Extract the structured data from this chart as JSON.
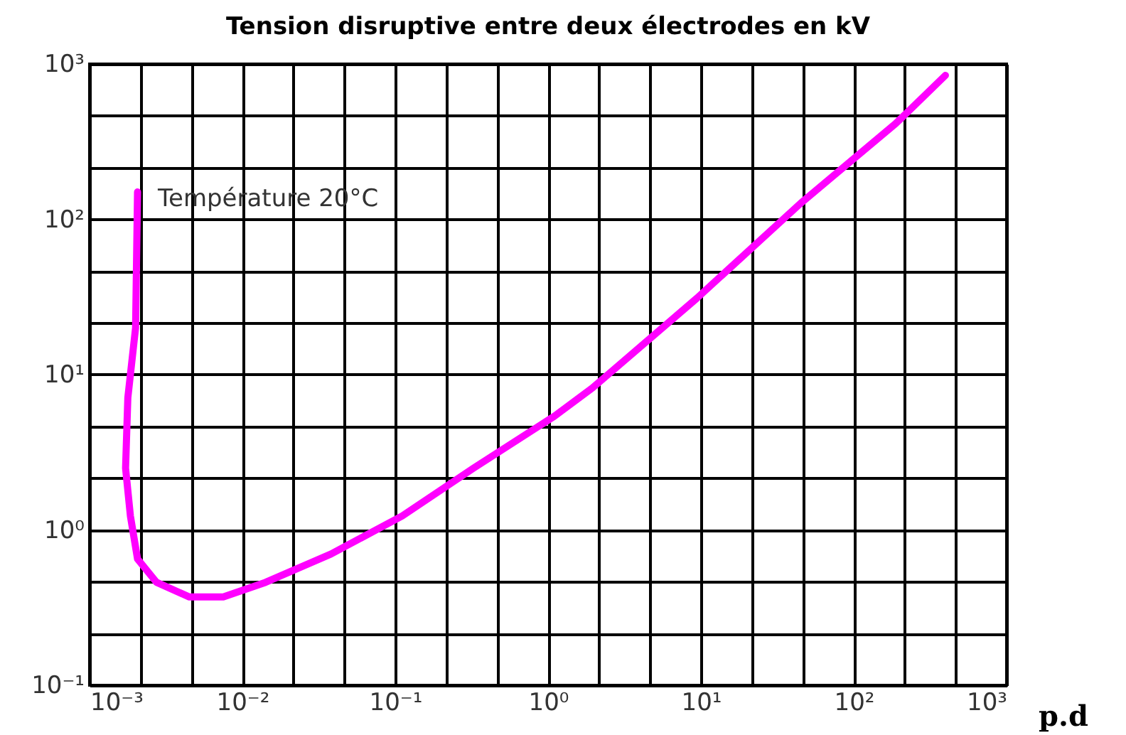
{
  "chart_data": {
    "type": "line",
    "title": "Tension disruptive entre deux électrodes en kV",
    "xlabel": "p.d",
    "log": "xy",
    "x": [
      0.00206,
      0.002,
      0.00178,
      0.00172,
      0.00185,
      0.00206,
      0.00274,
      0.0045,
      0.0075,
      0.0142,
      0.038,
      0.111,
      0.325,
      1.1,
      1.95,
      9.4,
      45,
      188,
      398
    ],
    "series": [
      {
        "color": "#ff00ff",
        "values": [
          150,
          20,
          7.1,
          2.5,
          1.23,
          0.65,
          0.46,
          0.37,
          0.37,
          0.46,
          0.7,
          1.23,
          2.5,
          5.4,
          8.2,
          31,
          127,
          413,
          845
        ]
      }
    ],
    "xlim": [
      0.001,
      1000
    ],
    "ylim": [
      0.1,
      1000
    ],
    "xticks": [
      {
        "value": 0.001,
        "label": "10⁻³"
      },
      {
        "value": 0.00215,
        "label": null
      },
      {
        "value": 0.00464,
        "label": null
      },
      {
        "value": 0.01,
        "label": "10⁻²"
      },
      {
        "value": 0.0215,
        "label": null
      },
      {
        "value": 0.0464,
        "label": null
      },
      {
        "value": 0.1,
        "label": "10⁻¹"
      },
      {
        "value": 0.215,
        "label": null
      },
      {
        "value": 0.464,
        "label": null
      },
      {
        "value": 1,
        "label": "10⁰"
      },
      {
        "value": 2.15,
        "label": null
      },
      {
        "value": 4.64,
        "label": null
      },
      {
        "value": 10,
        "label": "10¹"
      },
      {
        "value": 21.5,
        "label": null
      },
      {
        "value": 46.4,
        "label": null
      },
      {
        "value": 100,
        "label": "10²"
      },
      {
        "value": 215,
        "label": null
      },
      {
        "value": 464,
        "label": null
      },
      {
        "value": 1000,
        "label": "10³"
      }
    ],
    "yticks": [
      {
        "value": 0.1,
        "label": "10⁻¹"
      },
      {
        "value": 0.215,
        "label": null
      },
      {
        "value": 0.464,
        "label": null
      },
      {
        "value": 1,
        "label": "10⁰"
      },
      {
        "value": 2.15,
        "label": null
      },
      {
        "value": 4.64,
        "label": null
      },
      {
        "value": 10,
        "label": "10¹"
      },
      {
        "value": 21.5,
        "label": null
      },
      {
        "value": 46.4,
        "label": null
      },
      {
        "value": 100,
        "label": "10²"
      },
      {
        "value": 215,
        "label": null
      },
      {
        "value": 464,
        "label": null
      },
      {
        "value": 1000,
        "label": "10³"
      }
    ],
    "grid": true,
    "marker": "none",
    "line_style": "solid",
    "annotations": [
      "Température 20°C"
    ]
  }
}
